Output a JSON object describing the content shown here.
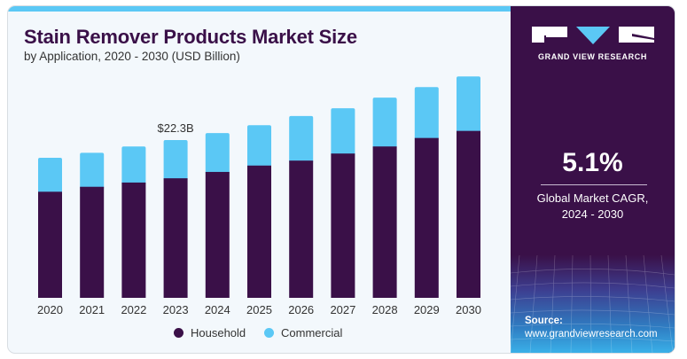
{
  "header": {
    "title": "Stain Remover Products Market Size",
    "subtitle": "by Application, 2020 - 2030 (USD Billion)"
  },
  "brand": {
    "name": "GRAND VIEW RESEARCH",
    "logo_icon": "gvr-logo-icon"
  },
  "stats": {
    "cagr_value": "5.1%",
    "cagr_label_line1": "Global Market CAGR,",
    "cagr_label_line2": "2024 - 2030"
  },
  "source": {
    "label": "Source:",
    "url": "www.grandviewresearch.com"
  },
  "colors": {
    "household": "#3a1048",
    "commercial": "#5bc8f5",
    "accent": "#5bc8f5",
    "panel": "#3a1048"
  },
  "chart_data": {
    "type": "bar",
    "stacked": true,
    "title": "Stain Remover Products Market Size",
    "subtitle": "by Application, 2020 - 2030 (USD Billion)",
    "xlabel": "",
    "ylabel": "",
    "ylim": [
      0,
      35
    ],
    "grid": false,
    "legend_position": "bottom-center",
    "categories": [
      "2020",
      "2021",
      "2022",
      "2023",
      "2024",
      "2025",
      "2026",
      "2027",
      "2028",
      "2029",
      "2030"
    ],
    "series": [
      {
        "name": "Household",
        "color": "#3a1048",
        "values": [
          15.0,
          15.7,
          16.3,
          16.9,
          17.8,
          18.7,
          19.4,
          20.4,
          21.4,
          22.6,
          23.6
        ]
      },
      {
        "name": "Commercial",
        "color": "#5bc8f5",
        "values": [
          4.8,
          4.8,
          5.1,
          5.4,
          5.5,
          5.7,
          6.3,
          6.4,
          6.9,
          7.2,
          7.7
        ]
      }
    ],
    "annotations": [
      {
        "category": "2023",
        "text": "$22.3B"
      }
    ]
  }
}
